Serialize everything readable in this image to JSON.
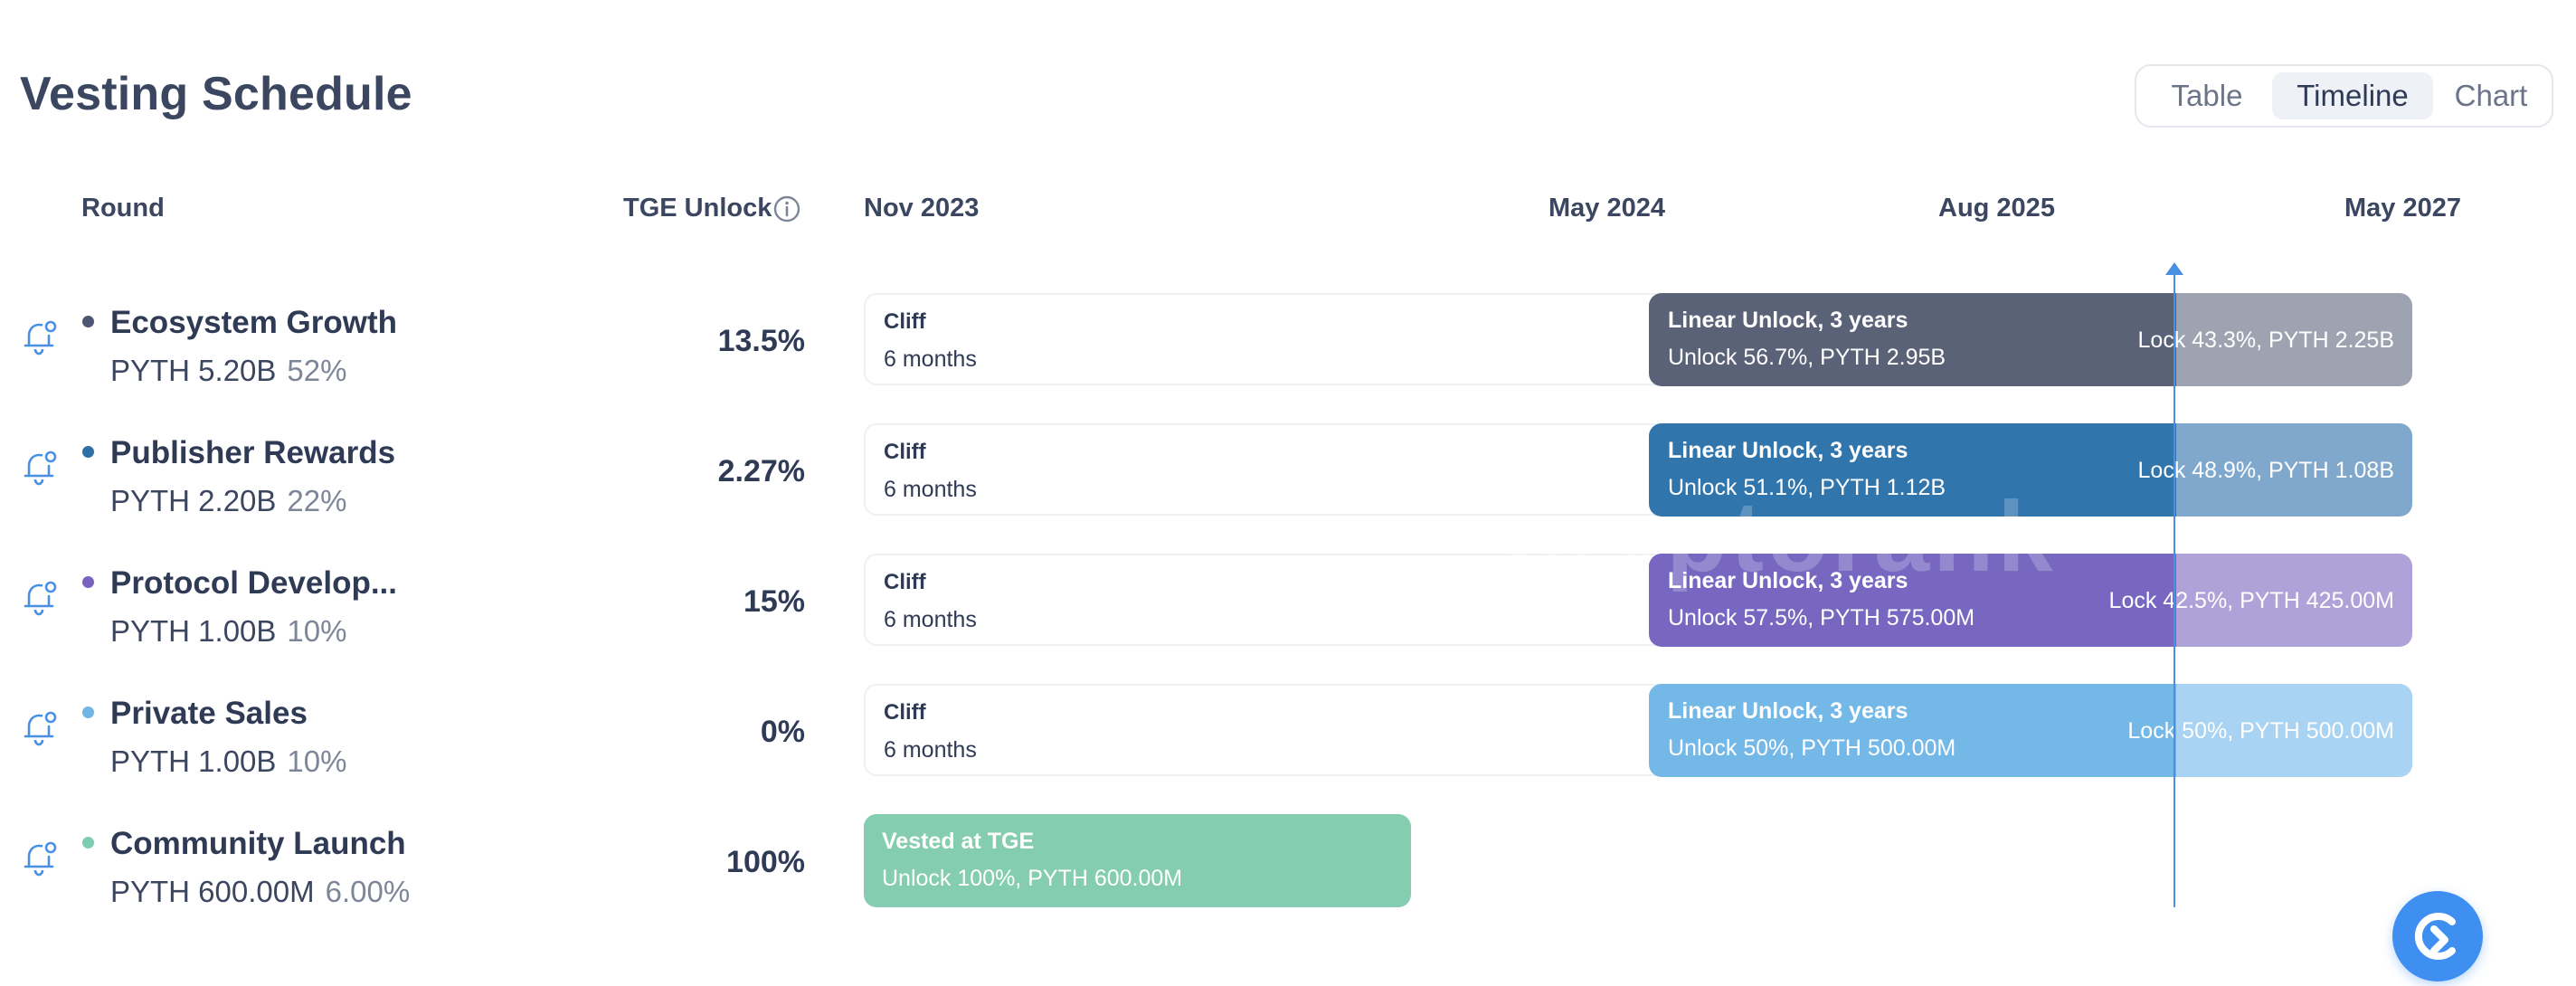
{
  "header": {
    "title": "Vesting Schedule"
  },
  "view_toggle": {
    "options": [
      "Table",
      "Timeline",
      "Chart"
    ],
    "selected": "Timeline"
  },
  "columns": {
    "round": "Round",
    "tge_unlock": "TGE Unlock"
  },
  "timeline_labels": [
    "Nov 2023",
    "May 2024",
    "Aug 2025",
    "May 2027"
  ],
  "watermark": "cryptorank",
  "rows": [
    {
      "name": "Ecosystem Growth",
      "amount": "PYTH 5.20B",
      "share": "52%",
      "tge": "13.5%",
      "dot_color": "#4e5672",
      "cliff": {
        "label": "Cliff",
        "duration": "6 months"
      },
      "linear": {
        "label": "Linear Unlock, 3 years",
        "unlock": "Unlock 56.7%, PYTH 2.95B",
        "lock": "Lock 43.3%, PYTH 2.25B",
        "color": "#5a6278",
        "lock_color": "#9ea3b2"
      }
    },
    {
      "name": "Publisher Rewards",
      "amount": "PYTH 2.20B",
      "share": "22%",
      "tge": "2.27%",
      "dot_color": "#2f6fa8",
      "cliff": {
        "label": "Cliff",
        "duration": "6 months"
      },
      "linear": {
        "label": "Linear Unlock, 3 years",
        "unlock": "Unlock 51.1%, PYTH 1.12B",
        "lock": "Lock 48.9%, PYTH 1.08B",
        "color": "#3175ad",
        "lock_color": "#7fa8cc"
      }
    },
    {
      "name": "Protocol Develop...",
      "amount": "PYTH 1.00B",
      "share": "10%",
      "tge": "15%",
      "dot_color": "#7a63c0",
      "cliff": {
        "label": "Cliff",
        "duration": "6 months"
      },
      "linear": {
        "label": "Linear Unlock, 3 years",
        "unlock": "Unlock 57.5%, PYTH 575.00M",
        "lock": "Lock 42.5%, PYTH 425.00M",
        "color": "#7767c0",
        "lock_color": "#aea2d9"
      }
    },
    {
      "name": "Private Sales",
      "amount": "PYTH 1.00B",
      "share": "10%",
      "tge": "0%",
      "dot_color": "#6fb5e6",
      "cliff": {
        "label": "Cliff",
        "duration": "6 months"
      },
      "linear": {
        "label": "Linear Unlock, 3 years",
        "unlock": "Unlock 50%, PYTH 500.00M",
        "lock": "Lock 50%, PYTH 500.00M",
        "color": "#74b8e8",
        "lock_color": "#a9d3f2"
      }
    },
    {
      "name": "Community Launch",
      "amount": "PYTH 600.00M",
      "share": "6.00%",
      "tge": "100%",
      "dot_color": "#7dcdb0",
      "vested": {
        "label": "Vested at TGE",
        "unlock": "Unlock 100%, PYTH 600.00M",
        "color": "#84cdb1"
      }
    }
  ]
}
